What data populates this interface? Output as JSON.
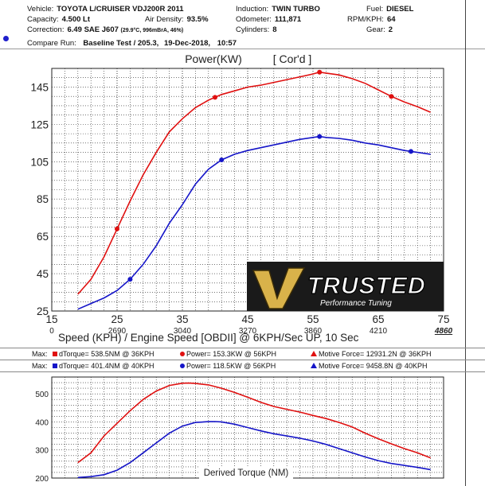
{
  "header": {
    "vehicle_label": "Vehicle:",
    "vehicle": "TOYOTA L/CRUISER VDJ200R 2011",
    "capacity_label": "Capacity:",
    "capacity": "4.500 Lt",
    "air_density_label": "Air Density:",
    "air_density": "93.5%",
    "correction_label": "Correction:",
    "correction": "6.49 SAE J607",
    "correction_detail": "(29.9°C, 996mBrA, 46%)",
    "induction_label": "Induction:",
    "induction": "TWIN TURBO",
    "odometer_label": "Odometer:",
    "odometer": "111,871",
    "cylinders_label": "Cylinders:",
    "cylinders": "8",
    "fuel_label": "Fuel:",
    "fuel": "DIESEL",
    "rpm_label": "RPM/KPH:",
    "rpm": "64",
    "gear_label": "Gear:",
    "gear": "2"
  },
  "compare": {
    "label": "Compare Run:",
    "value": "Baseline Test / 205.3,",
    "date": "19-Dec-2018,",
    "time": "10:57"
  },
  "logo_text": "TRUSTED",
  "logo_subtext": "Performance Tuning",
  "max_rows": [
    {
      "max_label": "Max:",
      "dtorque": "dTorque= 538.5NM @ 36KPH",
      "power": "Power= 153.3KW @ 56KPH",
      "motive": "Motive Force= 12931.2N @ 36KPH",
      "color": "#e01010"
    },
    {
      "max_label": "Max:",
      "dtorque": "dTorque= 401.4NM @ 40KPH",
      "power": "Power= 118.5KW @ 56KPH",
      "motive": "Motive Force= 9458.8N @ 40KPH",
      "color": "#1515c8"
    }
  ],
  "chart_data": [
    {
      "type": "line",
      "title": "Power(KW)",
      "title_tag": "[ Cor'd ]",
      "xlabel": "Speed (KPH) / Engine Speed [OBDII] @ 6KPH/Sec UP, 10 Sec",
      "x_ticks": [
        "15",
        "25",
        "35",
        "45",
        "55",
        "65",
        "75"
      ],
      "x_range": [
        15,
        75
      ],
      "rpm_ticks": [
        "0",
        "2690",
        "3040",
        "3270",
        "3860",
        "4210",
        "4860"
      ],
      "ylim": [
        25,
        155
      ],
      "y_ticks": [
        "25",
        "45",
        "65",
        "85",
        "105",
        "125",
        "145"
      ],
      "grid": true,
      "series": [
        {
          "color": "#e01010",
          "x": [
            19,
            21,
            23,
            25,
            27,
            29,
            31,
            33,
            35,
            37,
            39,
            41,
            43,
            45,
            47,
            49,
            51,
            53,
            55,
            56,
            57,
            59,
            61,
            63,
            65,
            67,
            69,
            71,
            73
          ],
          "y": [
            34,
            42,
            54,
            69,
            84,
            98,
            110,
            121,
            128,
            134,
            138,
            141,
            143,
            145,
            146,
            147.5,
            149,
            150.5,
            152,
            153,
            152.5,
            151.5,
            149.5,
            147,
            143.5,
            140,
            137,
            134.5,
            131.5
          ],
          "markers_x": [
            25,
            40,
            56,
            67
          ]
        },
        {
          "color": "#1515c8",
          "x": [
            19,
            21,
            23,
            25,
            27,
            29,
            31,
            33,
            35,
            37,
            39,
            41,
            43,
            45,
            47,
            49,
            51,
            53,
            55,
            56,
            57,
            59,
            61,
            63,
            65,
            67,
            69,
            71,
            73
          ],
          "y": [
            26,
            29,
            32,
            36,
            42,
            50,
            60,
            72,
            82,
            93,
            101,
            106,
            109,
            111,
            112.5,
            114,
            115.5,
            117,
            118,
            118.5,
            118,
            117.5,
            116.5,
            115,
            114,
            112.5,
            111,
            110,
            109
          ],
          "markers_x": [
            27,
            41,
            56,
            70
          ]
        }
      ]
    },
    {
      "type": "line",
      "title": "Derived Torque (NM)",
      "ylim": [
        200,
        560
      ],
      "y_ticks": [
        "200",
        "300",
        "400",
        "500"
      ],
      "x_range": [
        15,
        75
      ],
      "grid": true,
      "series": [
        {
          "color": "#e01010",
          "x": [
            19,
            21,
            23,
            25,
            27,
            29,
            31,
            33,
            35,
            36,
            37,
            39,
            41,
            43,
            45,
            47,
            49,
            51,
            53,
            55,
            57,
            59,
            61,
            63,
            65,
            67,
            69,
            71,
            73
          ],
          "y": [
            255,
            290,
            350,
            395,
            440,
            480,
            510,
            530,
            538,
            538.5,
            537,
            532,
            520,
            505,
            488,
            470,
            455,
            445,
            435,
            423,
            412,
            398,
            382,
            360,
            340,
            322,
            305,
            290,
            272
          ]
        },
        {
          "color": "#1515c8",
          "x": [
            19,
            21,
            23,
            25,
            27,
            29,
            31,
            33,
            35,
            37,
            39,
            40,
            41,
            43,
            45,
            47,
            49,
            51,
            53,
            55,
            57,
            59,
            61,
            63,
            65,
            67,
            69,
            71,
            73
          ],
          "y": [
            202,
            205,
            212,
            228,
            255,
            290,
            325,
            360,
            385,
            398,
            401,
            401.4,
            400,
            392,
            380,
            368,
            358,
            350,
            342,
            332,
            320,
            305,
            290,
            275,
            262,
            252,
            245,
            238,
            230
          ]
        }
      ]
    }
  ]
}
